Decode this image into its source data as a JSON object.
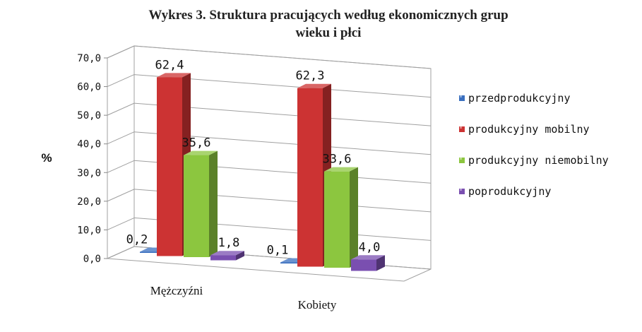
{
  "chart_data": {
    "type": "bar",
    "title": "Wykres 3. Struktura pracujących według ekonomicznych grup wieku i płci",
    "title_lines": [
      "Wykres 3. Struktura pracujących według ekonomicznych grup",
      "wieku i płci"
    ],
    "ylabel": "%",
    "xlabel": "",
    "ylim": [
      0,
      70
    ],
    "yticks": [
      "70,0",
      "60,0",
      "50,0",
      "40,0",
      "30,0",
      "20,0",
      "10,0",
      "0,0"
    ],
    "categories": [
      "Mężczyźni",
      "Kobiety"
    ],
    "series": [
      {
        "name": "przedprodukcyjny",
        "values": [
          0.2,
          0.1
        ],
        "labels": [
          "0,2",
          "0,1"
        ],
        "color": "#3a6fbf"
      },
      {
        "name": "produkcyjny mobilny",
        "values": [
          62.4,
          62.3
        ],
        "labels": [
          "62,4",
          "62,3"
        ],
        "color": "#cc3333"
      },
      {
        "name": "produkcyjny niemobilny",
        "values": [
          35.6,
          33.6
        ],
        "labels": [
          "35,6",
          "33,6"
        ],
        "color": "#8cc63f"
      },
      {
        "name": "poprodukcyjny",
        "values": [
          1.8,
          4.0
        ],
        "labels": [
          "1,8",
          "4,0"
        ],
        "color": "#7a4fb0"
      }
    ],
    "grid": true,
    "legend_position": "right",
    "style": "3d-clustered-column"
  }
}
